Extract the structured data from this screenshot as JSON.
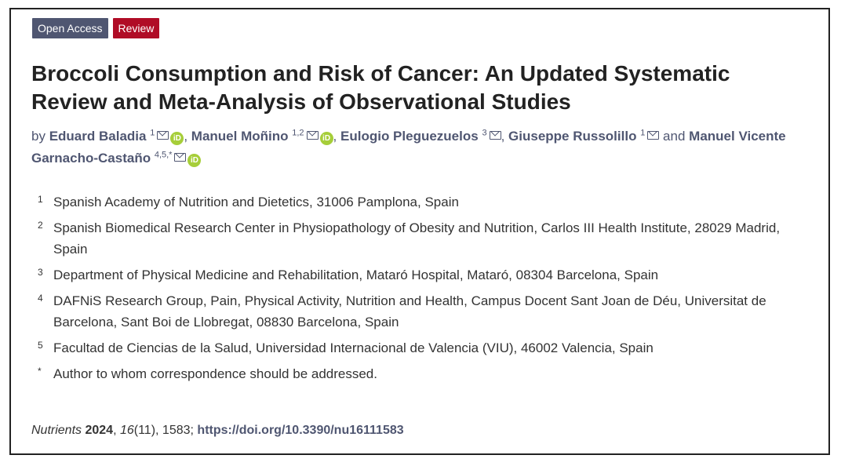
{
  "badges": {
    "open_access": "Open Access",
    "review": "Review"
  },
  "title": "Broccoli Consumption and Risk of Cancer: An Updated Systematic Review and Meta-Analysis of Observational Studies",
  "authors": {
    "by": "by",
    "and": "and",
    "list": [
      {
        "name": "Eduard Baladia",
        "sup": "1",
        "orcid": true
      },
      {
        "name": "Manuel Moñino",
        "sup": "1,2",
        "orcid": true
      },
      {
        "name": "Eulogio Pleguezuelos",
        "sup": "3",
        "orcid": false
      },
      {
        "name": "Giuseppe Russolillo",
        "sup": "1",
        "orcid": false
      },
      {
        "name": "Manuel Vicente Garnacho-Castaño",
        "sup": "4,5,*",
        "orcid": true
      }
    ],
    "orcid_glyph": "iD"
  },
  "affiliations": [
    {
      "num": "1",
      "text": "Spanish Academy of Nutrition and Dietetics, 31006 Pamplona, Spain"
    },
    {
      "num": "2",
      "text": "Spanish Biomedical Research Center in Physiopathology of Obesity and Nutrition, Carlos III Health Institute, 28029 Madrid, Spain"
    },
    {
      "num": "3",
      "text": "Department of Physical Medicine and Rehabilitation, Mataró Hospital, Mataró, 08304 Barcelona, Spain"
    },
    {
      "num": "4",
      "text": "DAFNiS Research Group, Pain, Physical Activity, Nutrition and Health, Campus Docent Sant Joan de Déu, Universitat de Barcelona, Sant Boi de Llobregat, 08830 Barcelona, Spain"
    },
    {
      "num": "5",
      "text": "Facultad de Ciencias de la Salud, Universidad Internacional de Valencia (VIU), 46002 Valencia, Spain"
    },
    {
      "num": "*",
      "text": "Author to whom correspondence should be addressed."
    }
  ],
  "citation": {
    "journal": "Nutrients",
    "year": "2024",
    "volume": "16",
    "issue_pages": "(11), 1583;",
    "doi": "https://doi.org/10.3390/nu16111583"
  },
  "colors": {
    "accent": "#4f5671",
    "review": "#b00c26",
    "orcid": "#a6ce39"
  }
}
